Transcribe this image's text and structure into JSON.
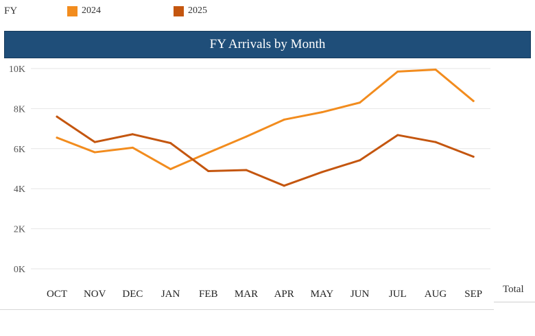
{
  "legend": {
    "label": "FY",
    "items": [
      {
        "name": "2024",
        "color": "#f28c1e"
      },
      {
        "name": "2025",
        "color": "#c4560f"
      }
    ]
  },
  "banner": {
    "title": "FY Arrivals by Month"
  },
  "table": {
    "total_label": "Total"
  },
  "chart_data": {
    "type": "line",
    "title": "FY Arrivals by Month",
    "categories": [
      "OCT",
      "NOV",
      "DEC",
      "JAN",
      "FEB",
      "MAR",
      "APR",
      "MAY",
      "JUN",
      "JUL",
      "AUG",
      "SEP"
    ],
    "series": [
      {
        "name": "2024",
        "color": "#f28c1e",
        "values": [
          6550,
          5820,
          6050,
          4980,
          5800,
          6600,
          7450,
          7820,
          8300,
          9850,
          9950,
          8380
        ]
      },
      {
        "name": "2025",
        "color": "#c4560f",
        "values": [
          7600,
          6330,
          6720,
          6280,
          4880,
          4930,
          4150,
          4830,
          5420,
          6680,
          6330,
          5600
        ]
      }
    ],
    "yticks": [
      0,
      2000,
      4000,
      6000,
      8000,
      10000
    ],
    "ytick_labels": [
      "0K",
      "2K",
      "4K",
      "6K",
      "8K",
      "10K"
    ],
    "ylim": [
      0,
      10000
    ],
    "xlabel": "",
    "ylabel": "",
    "grid": true,
    "legend_position": "top-left"
  }
}
